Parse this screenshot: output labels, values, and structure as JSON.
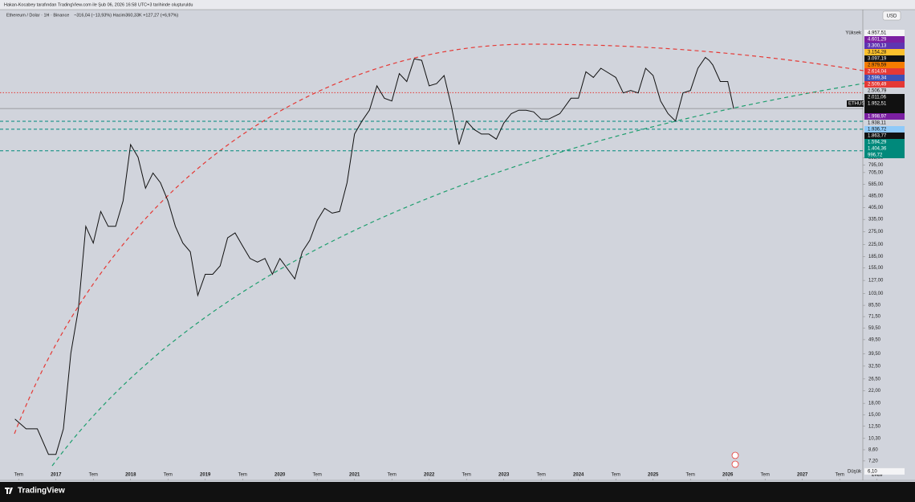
{
  "chart_data": {
    "type": "line",
    "attribution": "Hakan-Kocabey tarafından TradingView.com ile Şub 06, 2026 16:58 UTC+3 tarihinde oluşturuldu",
    "title": "Ethereum / Dolar · 1H · Binance",
    "subtitle": "~316,04 (−13,93%)  Hacim360,33K  +127,27 (+6,97%)",
    "currency": "USD",
    "brand": "TradingView",
    "log_scale": true,
    "color": "#111111",
    "xlim": [
      2016.25,
      2028.1
    ],
    "ylim": [
      5.5,
      9400
    ],
    "xticks": [
      {
        "value": 2016.5,
        "label": "Tem"
      },
      {
        "value": 2017,
        "label": "2017"
      },
      {
        "value": 2017.5,
        "label": "Tem"
      },
      {
        "value": 2018,
        "label": "2018"
      },
      {
        "value": 2018.5,
        "label": "Tem"
      },
      {
        "value": 2019,
        "label": "2019"
      },
      {
        "value": 2019.5,
        "label": "Tem"
      },
      {
        "value": 2020,
        "label": "2020"
      },
      {
        "value": 2020.5,
        "label": "Tem"
      },
      {
        "value": 2021,
        "label": "2021"
      },
      {
        "value": 2021.5,
        "label": "Tem"
      },
      {
        "value": 2022,
        "label": "2022"
      },
      {
        "value": 2022.5,
        "label": "Tem"
      },
      {
        "value": 2023,
        "label": "2023"
      },
      {
        "value": 2023.5,
        "label": "Tem"
      },
      {
        "value": 2024,
        "label": "2024"
      },
      {
        "value": 2024.5,
        "label": "Tem"
      },
      {
        "value": 2025,
        "label": "2025"
      },
      {
        "value": 2025.5,
        "label": "Tem"
      },
      {
        "value": 2026,
        "label": "2026"
      },
      {
        "value": 2026.5,
        "label": "Tem"
      },
      {
        "value": 2027,
        "label": "2027"
      },
      {
        "value": 2027.5,
        "label": "Tem"
      },
      {
        "value": 2028,
        "label": "2028"
      }
    ],
    "yticks": [
      {
        "value": 895,
        "label": "895,00"
      },
      {
        "value": 795,
        "label": "795,00"
      },
      {
        "value": 705,
        "label": "705,00"
      },
      {
        "value": 585,
        "label": "585,00"
      },
      {
        "value": 485,
        "label": "485,00"
      },
      {
        "value": 405,
        "label": "405,00"
      },
      {
        "value": 335,
        "label": "335,00"
      },
      {
        "value": 275,
        "label": "275,00"
      },
      {
        "value": 225,
        "label": "225,00"
      },
      {
        "value": 185,
        "label": "185,00"
      },
      {
        "value": 155,
        "label": "155,00"
      },
      {
        "value": 127,
        "label": "127,00"
      },
      {
        "value": 103,
        "label": "103,00"
      },
      {
        "value": 85.5,
        "label": "85,50"
      },
      {
        "value": 71.5,
        "label": "71,50"
      },
      {
        "value": 59.5,
        "label": "59,50"
      },
      {
        "value": 49.5,
        "label": "49,50"
      },
      {
        "value": 39.5,
        "label": "39,50"
      },
      {
        "value": 32.5,
        "label": "32,50"
      },
      {
        "value": 26.5,
        "label": "26,50"
      },
      {
        "value": 22,
        "label": "22,00"
      },
      {
        "value": 18,
        "label": "18,00"
      },
      {
        "value": 15,
        "label": "15,00"
      },
      {
        "value": 12.5,
        "label": "12,50"
      },
      {
        "value": 10.3,
        "label": "10,30"
      },
      {
        "value": 8.6,
        "label": "8,60"
      },
      {
        "value": 7.2,
        "label": "7,20"
      }
    ],
    "high": {
      "name": "Yüksek",
      "value": 4957.51,
      "label": "4.957,51"
    },
    "low": {
      "name": "Düşük",
      "value": 6.1,
      "label": "6,10"
    },
    "last": {
      "name": "ETHUSD",
      "value": 1952.51,
      "label": "1.952,51",
      "countdown": "2d 11h"
    },
    "price_labels": [
      {
        "value": 4601.29,
        "label": "4.601,29",
        "color": "#7b1fa2"
      },
      {
        "value": 3300.13,
        "label": "3.300,13",
        "color": "#5e35b1"
      },
      {
        "value": 3154.28,
        "label": "3.154,28",
        "color": "#fbc02d"
      },
      {
        "value": 3097.19,
        "label": "3.097,19",
        "color": "#111111"
      },
      {
        "value": 2979.59,
        "label": "2.979,59",
        "color": "#f57c00"
      },
      {
        "value": 2614.04,
        "label": "2.614,04",
        "color": "#e53935"
      },
      {
        "value": 2599.34,
        "label": "2.599,34",
        "color": "#3f51b5"
      },
      {
        "value": 2509.49,
        "label": "2.509,49",
        "color": "#e53935",
        "line": "dotted"
      },
      {
        "value": 2506.79,
        "label": "2.506,79",
        "color": "#d1d4dc"
      },
      {
        "value": 2011.06,
        "label": "2.011,06",
        "color": "#111111"
      },
      {
        "value": 1998.97,
        "label": "1.998,97",
        "color": "#7b1fa2"
      },
      {
        "value": 1938.11,
        "label": "1.938,11",
        "color": "#d1d4dc"
      },
      {
        "value": 1936.72,
        "label": "1.936,72",
        "color": "#90caf9"
      },
      {
        "value": 1863.77,
        "label": "1.863,77",
        "color": "#111111"
      },
      {
        "value": 1594.29,
        "label": "1.594,29",
        "color": "#00897b",
        "line": "dashed"
      },
      {
        "value": 1404.36,
        "label": "1.404,36",
        "color": "#00897b",
        "line": "dashed"
      },
      {
        "value": 996.72,
        "label": "996,72",
        "color": "#00897b",
        "line": "dashed"
      }
    ],
    "x": [
      2016.45,
      2016.6,
      2016.75,
      2016.9,
      2017.0,
      2017.1,
      2017.2,
      2017.3,
      2017.4,
      2017.5,
      2017.6,
      2017.7,
      2017.8,
      2017.9,
      2018.0,
      2018.1,
      2018.2,
      2018.3,
      2018.4,
      2018.5,
      2018.6,
      2018.7,
      2018.8,
      2018.9,
      2019.0,
      2019.1,
      2019.2,
      2019.3,
      2019.4,
      2019.5,
      2019.6,
      2019.7,
      2019.8,
      2019.9,
      2020.0,
      2020.2,
      2020.3,
      2020.4,
      2020.5,
      2020.6,
      2020.7,
      2020.8,
      2020.9,
      2021.0,
      2021.1,
      2021.2,
      2021.3,
      2021.4,
      2021.5,
      2021.6,
      2021.7,
      2021.8,
      2021.9,
      2022.0,
      2022.1,
      2022.2,
      2022.3,
      2022.4,
      2022.5,
      2022.6,
      2022.7,
      2022.8,
      2022.9,
      2023.0,
      2023.1,
      2023.2,
      2023.3,
      2023.4,
      2023.5,
      2023.6,
      2023.75,
      2023.9,
      2024.0,
      2024.1,
      2024.2,
      2024.3,
      2024.5,
      2024.6,
      2024.7,
      2024.8,
      2024.9,
      2025.0,
      2025.1,
      2025.2,
      2025.3,
      2025.4,
      2025.5,
      2025.6,
      2025.7,
      2025.75,
      2025.8,
      2025.9,
      2026.0,
      2026.08
    ],
    "values": [
      14,
      12,
      12,
      8,
      8,
      12,
      40,
      80,
      300,
      230,
      380,
      300,
      300,
      450,
      1100,
      900,
      550,
      700,
      600,
      450,
      300,
      230,
      200,
      100,
      140,
      140,
      160,
      250,
      270,
      220,
      180,
      170,
      180,
      140,
      180,
      130,
      200,
      240,
      330,
      400,
      370,
      380,
      600,
      1300,
      1600,
      1900,
      2800,
      2300,
      2200,
      3400,
      3000,
      4300,
      4200,
      2800,
      2900,
      3300,
      2000,
      1100,
      1600,
      1400,
      1300,
      1300,
      1200,
      1550,
      1800,
      1900,
      1900,
      1850,
      1650,
      1650,
      1800,
      2300,
      2300,
      3500,
      3200,
      3700,
      3200,
      2500,
      2600,
      2500,
      3700,
      3300,
      2200,
      1800,
      1600,
      2500,
      2600,
      3700,
      4400,
      4200,
      3900,
      3000,
      3000,
      1952.51
    ]
  }
}
